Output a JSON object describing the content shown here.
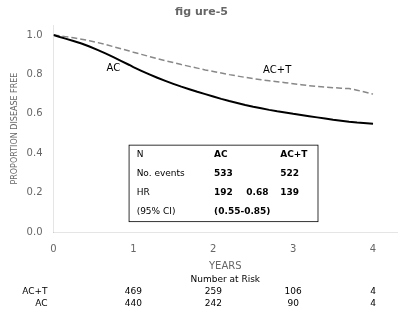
{
  "chart_data": {
    "type": "line",
    "title": "fig ure-5",
    "xlabel": "YEARS",
    "ylabel": "PROPORTION DISEASE FREE",
    "xlim": [
      0,
      4.3
    ],
    "ylim": [
      0,
      1.05
    ],
    "xticks": [
      0,
      1,
      2,
      3,
      4
    ],
    "yticks": [
      {
        "value": 0,
        "label": "0.0"
      },
      0.2,
      0.4,
      0.6,
      0.8,
      {
        "value": 1,
        "label": "1.0"
      }
    ],
    "grid": false,
    "x": [
      0,
      0.08,
      0.15,
      0.25,
      0.35,
      0.45,
      0.55,
      0.65,
      0.75,
      0.85,
      0.95,
      1.0,
      1.1,
      1.2,
      1.3,
      1.4,
      1.5,
      1.6,
      1.7,
      1.8,
      1.9,
      2.0,
      2.1,
      2.2,
      2.3,
      2.4,
      2.5,
      2.6,
      2.7,
      2.8,
      2.9,
      3.0,
      3.1,
      3.2,
      3.3,
      3.4,
      3.5,
      3.6,
      3.7,
      3.8,
      4.0
    ],
    "series": [
      {
        "name": "AC",
        "color": "#000000",
        "line_style": "solid",
        "values": [
          1.0,
          0.99,
          0.982,
          0.97,
          0.957,
          0.942,
          0.925,
          0.907,
          0.888,
          0.868,
          0.848,
          0.837,
          0.818,
          0.8,
          0.783,
          0.767,
          0.752,
          0.738,
          0.725,
          0.712,
          0.7,
          0.688,
          0.676,
          0.665,
          0.655,
          0.645,
          0.636,
          0.628,
          0.62,
          0.613,
          0.607,
          0.6,
          0.594,
          0.588,
          0.582,
          0.576,
          0.57,
          0.565,
          0.56,
          0.556,
          0.55
        ]
      },
      {
        "name": "AC+T",
        "color": "#888888",
        "line_style": "dashed",
        "values": [
          1.0,
          0.996,
          0.992,
          0.986,
          0.979,
          0.971,
          0.962,
          0.952,
          0.941,
          0.93,
          0.919,
          0.913,
          0.902,
          0.891,
          0.88,
          0.87,
          0.86,
          0.85,
          0.841,
          0.832,
          0.823,
          0.815,
          0.807,
          0.799,
          0.792,
          0.785,
          0.779,
          0.773,
          0.768,
          0.763,
          0.758,
          0.753,
          0.748,
          0.743,
          0.739,
          0.736,
          0.733,
          0.73,
          0.728,
          0.72,
          0.7
        ]
      }
    ],
    "stats_table": [
      [
        "N",
        "AC",
        "AC+T"
      ],
      [
        "No. events",
        533,
        522
      ],
      [
        "HR",
        192,
        0.68,
        139
      ],
      [
        "(95% CI)",
        "(0.55-0.85)"
      ]
    ],
    "number_at_risk": {
      "title": "Number at Risk",
      "x": [
        1,
        2,
        3,
        4
      ],
      "rows": [
        {
          "name": "AC+T",
          "values": [
            469,
            259,
            106,
            4
          ]
        },
        {
          "name": "AC",
          "values": [
            440,
            242,
            90,
            4
          ]
        }
      ]
    }
  }
}
